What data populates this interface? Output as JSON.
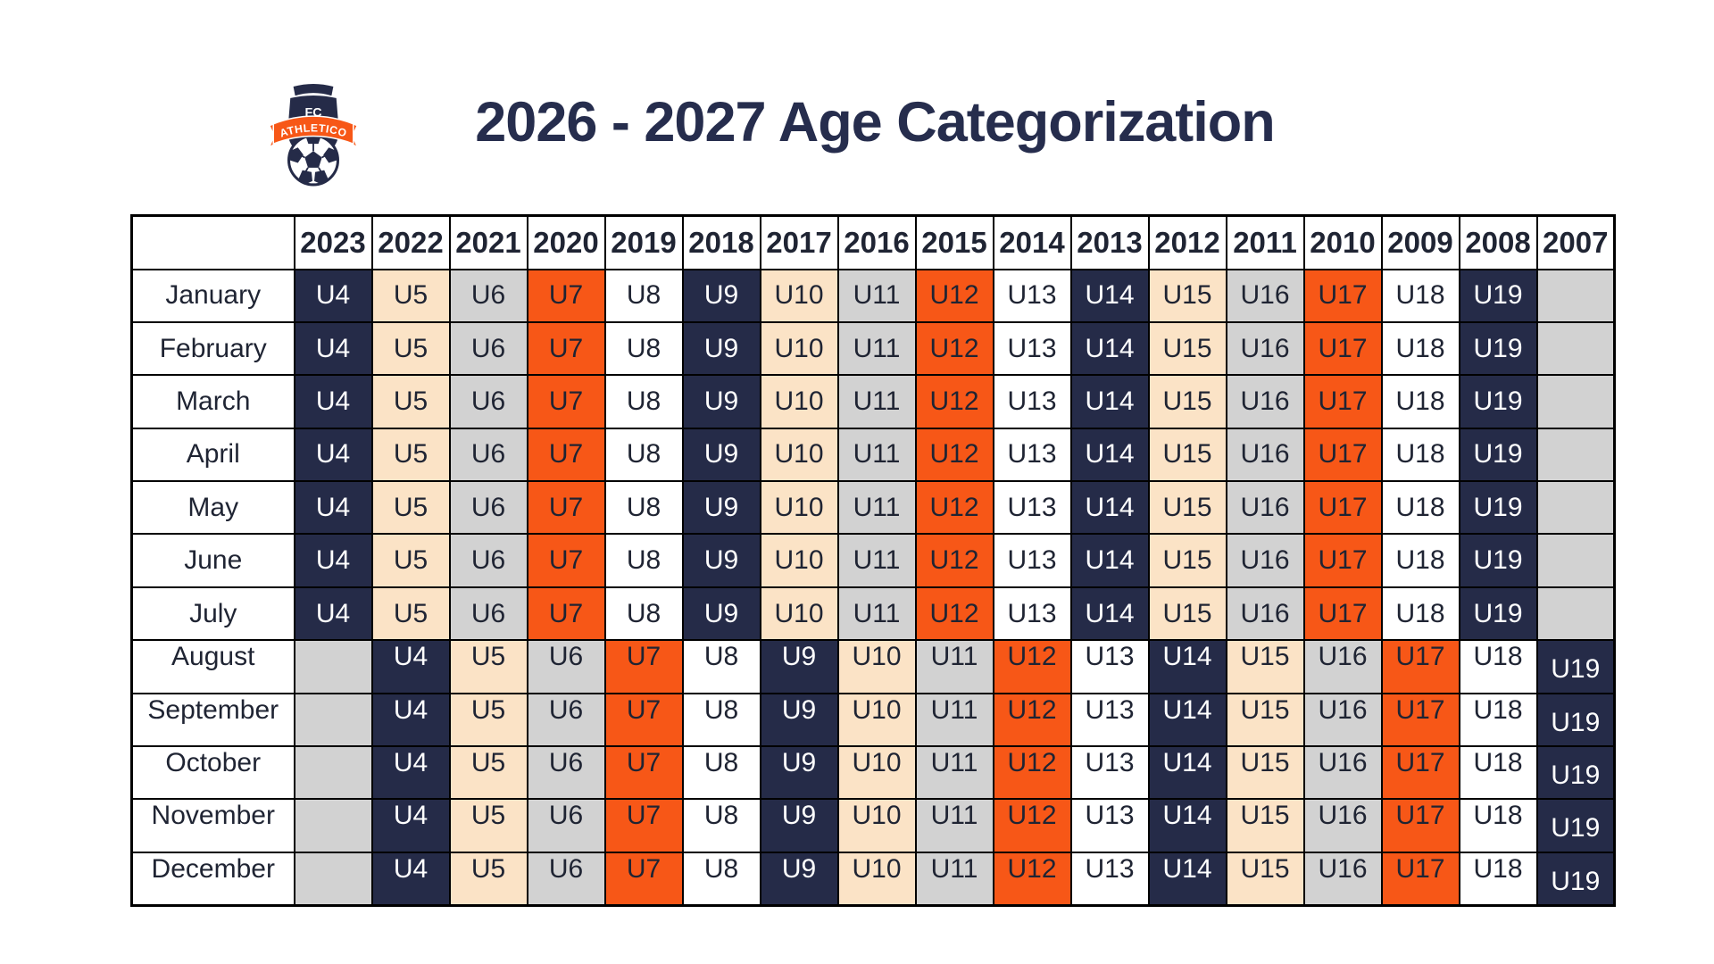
{
  "header": {
    "title": "2026 - 2027 Age Categorization",
    "logo": {
      "top_label": "FC",
      "name": "ATHLETICO"
    }
  },
  "colors": {
    "navy": "#252B48",
    "cream": "#FBE3C6",
    "gray": "#D2D2D2",
    "orange": "#F75717",
    "white": "#FFFFFF",
    "border": "#000000",
    "title_text": "#262D4D",
    "cell_text_dark": "#1F2433",
    "cell_text_light": "#FFFFFF"
  },
  "table": {
    "corner_label": "",
    "year_columns": [
      "2023",
      "2022",
      "2021",
      "2020",
      "2019",
      "2018",
      "2017",
      "2016",
      "2015",
      "2014",
      "2013",
      "2012",
      "2011",
      "2010",
      "2009",
      "2008",
      "2007"
    ],
    "age_colors": {
      "U4": "navy",
      "U5": "cream",
      "U6": "gray",
      "U7": "orange",
      "U8": "white",
      "U9": "navy",
      "U10": "cream",
      "U11": "gray",
      "U12": "orange",
      "U13": "white",
      "U14": "navy",
      "U15": "cream",
      "U16": "gray",
      "U17": "orange",
      "U18": "white",
      "U19": "navy"
    },
    "empty_cell_color": "gray",
    "rows": [
      {
        "month": "January",
        "cells": [
          "U4",
          "U5",
          "U6",
          "U7",
          "U8",
          "U9",
          "U10",
          "U11",
          "U12",
          "U13",
          "U14",
          "U15",
          "U16",
          "U17",
          "U18",
          "U19",
          ""
        ]
      },
      {
        "month": "February",
        "cells": [
          "U4",
          "U5",
          "U6",
          "U7",
          "U8",
          "U9",
          "U10",
          "U11",
          "U12",
          "U13",
          "U14",
          "U15",
          "U16",
          "U17",
          "U18",
          "U19",
          ""
        ]
      },
      {
        "month": "March",
        "cells": [
          "U4",
          "U5",
          "U6",
          "U7",
          "U8",
          "U9",
          "U10",
          "U11",
          "U12",
          "U13",
          "U14",
          "U15",
          "U16",
          "U17",
          "U18",
          "U19",
          ""
        ]
      },
      {
        "month": "April",
        "cells": [
          "U4",
          "U5",
          "U6",
          "U7",
          "U8",
          "U9",
          "U10",
          "U11",
          "U12",
          "U13",
          "U14",
          "U15",
          "U16",
          "U17",
          "U18",
          "U19",
          ""
        ]
      },
      {
        "month": "May",
        "cells": [
          "U4",
          "U5",
          "U6",
          "U7",
          "U8",
          "U9",
          "U10",
          "U11",
          "U12",
          "U13",
          "U14",
          "U15",
          "U16",
          "U17",
          "U18",
          "U19",
          ""
        ]
      },
      {
        "month": "June",
        "cells": [
          "U4",
          "U5",
          "U6",
          "U7",
          "U8",
          "U9",
          "U10",
          "U11",
          "U12",
          "U13",
          "U14",
          "U15",
          "U16",
          "U17",
          "U18",
          "U19",
          ""
        ]
      },
      {
        "month": "July",
        "cells": [
          "U4",
          "U5",
          "U6",
          "U7",
          "U8",
          "U9",
          "U10",
          "U11",
          "U12",
          "U13",
          "U14",
          "U15",
          "U16",
          "U17",
          "U18",
          "U19",
          ""
        ]
      },
      {
        "month": "August",
        "cells": [
          "",
          "U4",
          "U5",
          "U6",
          "U7",
          "U8",
          "U9",
          "U10",
          "U11",
          "U12",
          "U13",
          "U14",
          "U15",
          "U16",
          "U17",
          "U18",
          "U19"
        ]
      },
      {
        "month": "September",
        "cells": [
          "",
          "U4",
          "U5",
          "U6",
          "U7",
          "U8",
          "U9",
          "U10",
          "U11",
          "U12",
          "U13",
          "U14",
          "U15",
          "U16",
          "U17",
          "U18",
          "U19"
        ]
      },
      {
        "month": "October",
        "cells": [
          "",
          "U4",
          "U5",
          "U6",
          "U7",
          "U8",
          "U9",
          "U10",
          "U11",
          "U12",
          "U13",
          "U14",
          "U15",
          "U16",
          "U17",
          "U18",
          "U19"
        ]
      },
      {
        "month": "November",
        "cells": [
          "",
          "U4",
          "U5",
          "U6",
          "U7",
          "U8",
          "U9",
          "U10",
          "U11",
          "U12",
          "U13",
          "U14",
          "U15",
          "U16",
          "U17",
          "U18",
          "U19"
        ]
      },
      {
        "month": "December",
        "cells": [
          "",
          "U4",
          "U5",
          "U6",
          "U7",
          "U8",
          "U9",
          "U10",
          "U11",
          "U12",
          "U13",
          "U14",
          "U15",
          "U16",
          "U17",
          "U18",
          "U19"
        ]
      }
    ]
  }
}
